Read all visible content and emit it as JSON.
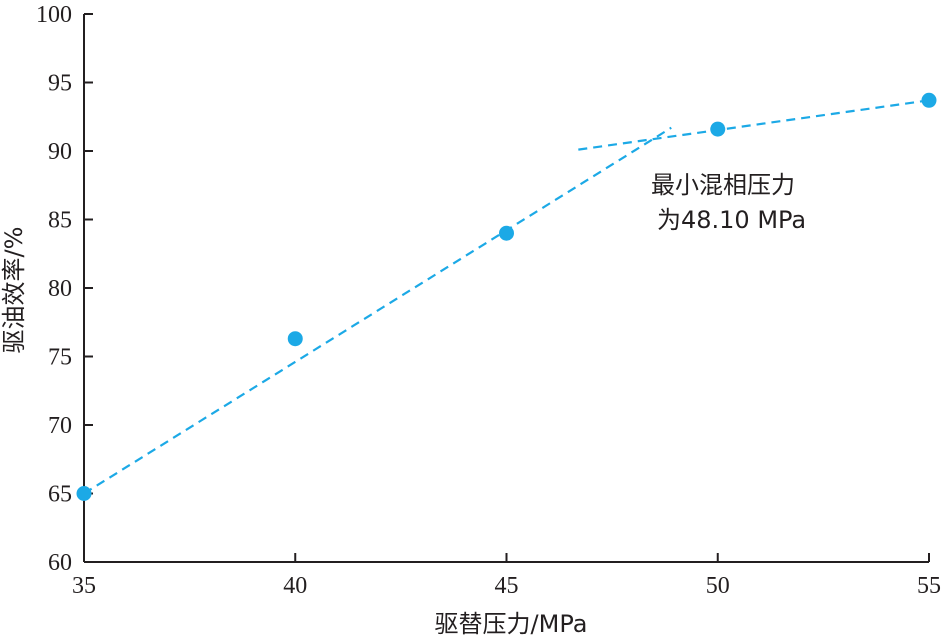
{
  "chart_data": {
    "type": "scatter",
    "xlabel": "驱替压力/MPa",
    "ylabel": "驱油效率/%",
    "xlim": [
      35,
      55
    ],
    "ylim": [
      60,
      100
    ],
    "xticks": [
      35,
      40,
      45,
      50,
      55
    ],
    "yticks": [
      60,
      65,
      70,
      75,
      80,
      85,
      90,
      95,
      100
    ],
    "grid": false,
    "points": {
      "x": [
        35,
        40,
        45,
        50,
        55
      ],
      "y": [
        65.0,
        76.3,
        84.0,
        91.6,
        93.7
      ],
      "color": "#1ca9e6"
    },
    "fit_lines": [
      {
        "x": [
          35,
          48.9
        ],
        "y": [
          65.0,
          91.7
        ],
        "color": "#1ca9e6",
        "style": "dashed"
      },
      {
        "x": [
          46.7,
          55
        ],
        "y": [
          90.1,
          93.7
        ],
        "color": "#1ca9e6",
        "style": "dashed"
      }
    ],
    "annotation": {
      "lines": [
        "最小混相压力",
        "为48.10 MPa"
      ]
    }
  }
}
